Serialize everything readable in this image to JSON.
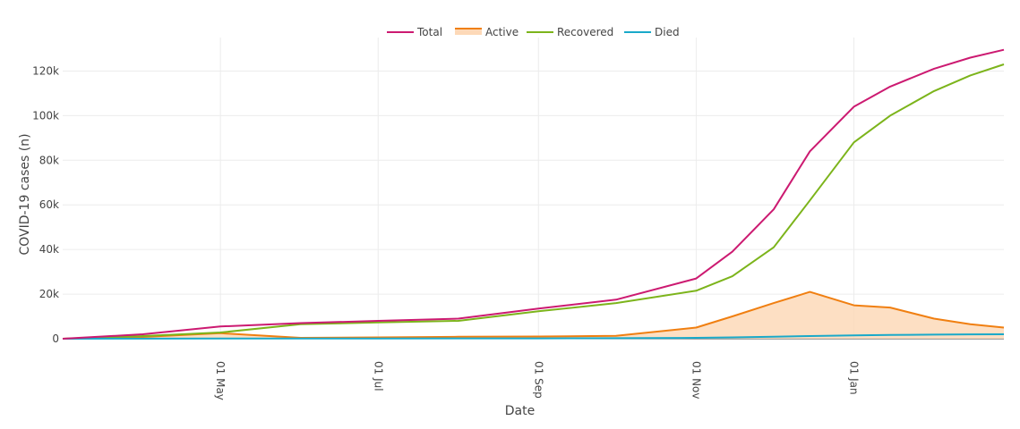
{
  "chart_data": {
    "type": "line",
    "xlabel": "Date",
    "ylabel": "COVID-19 cases (n)",
    "x_tick_labels": [
      "01 May",
      "01 Jul",
      "01 Sep",
      "01 Nov",
      "01 Jan"
    ],
    "y_tick_labels": [
      "0",
      "20k",
      "40k",
      "60k",
      "80k",
      "100k",
      "120k"
    ],
    "y_ticks": [
      0,
      20000,
      40000,
      60000,
      80000,
      100000,
      120000
    ],
    "ylim": [
      0,
      135000
    ],
    "grid": true,
    "legend_position": "top-center",
    "x": [
      "2020-03-01",
      "2020-04-01",
      "2020-05-01",
      "2020-06-01",
      "2020-07-01",
      "2020-08-01",
      "2020-09-01",
      "2020-10-01",
      "2020-11-01",
      "2020-11-15",
      "2020-12-01",
      "2020-12-15",
      "2021-01-01",
      "2021-01-15",
      "2021-02-01",
      "2021-02-15",
      "2021-02-28"
    ],
    "series": [
      {
        "name": "Total",
        "color": "#cc1a71",
        "fill": false,
        "values": [
          0,
          2000,
          5500,
          7000,
          8000,
          9000,
          13500,
          17500,
          27000,
          39000,
          58000,
          84000,
          104000,
          113000,
          121000,
          126000,
          129500
        ]
      },
      {
        "name": "Active",
        "color": "#f07f11",
        "fill": true,
        "values": [
          0,
          800,
          2500,
          400,
          600,
          900,
          1000,
          1300,
          5000,
          10000,
          16000,
          21000,
          15000,
          14000,
          9000,
          6500,
          5000
        ]
      },
      {
        "name": "Recovered",
        "color": "#7cb41b",
        "fill": false,
        "values": [
          0,
          1200,
          2800,
          6500,
          7300,
          8000,
          12300,
          16000,
          21500,
          28000,
          41000,
          62000,
          88000,
          100000,
          111000,
          118000,
          123000
        ]
      },
      {
        "name": "Died",
        "color": "#19a9c9",
        "fill": false,
        "values": [
          0,
          30,
          80,
          100,
          120,
          150,
          180,
          250,
          400,
          600,
          900,
          1200,
          1500,
          1700,
          1850,
          1950,
          2000
        ]
      }
    ]
  }
}
